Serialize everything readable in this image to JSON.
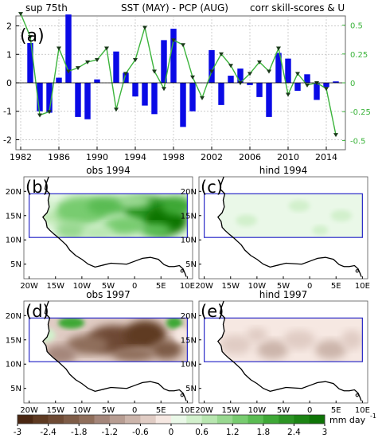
{
  "header": {
    "left": "sup 75th",
    "center": "SST (MAY) - PCP (AUG)",
    "right": "corr skill-scores & U"
  },
  "panel_tags": {
    "a": "(a)",
    "b": "(b)",
    "c": "(c)",
    "d": "(d)",
    "e": "(e)"
  },
  "map_titles": {
    "b": "obs 1994",
    "c": "hind 1994",
    "d": "obs 1997",
    "e": "hind 1997"
  },
  "colors": {
    "bars": "#0a0ae6",
    "line": "#3cb43c",
    "right_axis": "#3cb43c",
    "box": "#2a2ac8",
    "coast": "#000000"
  },
  "chart_data": [
    {
      "type": "bar",
      "title": "",
      "x": [
        1982,
        1983,
        1984,
        1985,
        1986,
        1987,
        1988,
        1989,
        1990,
        1991,
        1992,
        1993,
        1994,
        1995,
        1996,
        1997,
        1998,
        1999,
        2000,
        2001,
        2002,
        2003,
        2004,
        2005,
        2006,
        2007,
        2008,
        2009,
        2010,
        2011,
        2012,
        2013,
        2014,
        2015
      ],
      "series": [
        {
          "axis": "left",
          "values": [
            0,
            1.4,
            -1.0,
            -1.05,
            0.18,
            2.4,
            -1.2,
            -1.28,
            0.12,
            0,
            1.1,
            0.35,
            -0.48,
            -0.8,
            -1.1,
            1.5,
            1.9,
            -1.55,
            -1.0,
            0,
            1.15,
            -0.78,
            0.25,
            0.5,
            -0.08,
            -0.5,
            -1.2,
            1.05,
            0.85,
            -0.28,
            0.3,
            -0.6,
            -0.15,
            0.05
          ]
        },
        {
          "type": "line",
          "axis": "right",
          "values": [
            0.6,
            0.4,
            -0.28,
            -0.25,
            0.3,
            0.1,
            0.13,
            0.18,
            0.2,
            0.3,
            -0.23,
            0.08,
            0.2,
            0.48,
            0.1,
            -0.05,
            0.37,
            0.33,
            0.05,
            -0.13,
            0.1,
            0.25,
            0.15,
            0,
            0.08,
            0.18,
            0.1,
            0.3,
            -0.1,
            0.08,
            -0.02,
            0,
            -0.05,
            -0.45
          ]
        }
      ],
      "xticks": [
        1982,
        1986,
        1990,
        1994,
        1998,
        2002,
        2006,
        2010,
        2014
      ],
      "xlim": [
        1981.5,
        2016
      ],
      "ylim": [
        -2.35,
        2.35
      ],
      "yticks": [
        -2,
        -1,
        0,
        1,
        2
      ],
      "ylim_right": [
        -0.58,
        0.58
      ],
      "yticks_right": [
        -0.5,
        -0.25,
        0,
        0.25,
        0.5
      ],
      "ytick_labels_right": [
        "-0.5",
        "-0.25",
        "0",
        "0.25",
        "0.5"
      ],
      "grid": "dashed"
    },
    {
      "type": "heatmap",
      "xlim": [
        -21,
        11
      ],
      "ylim": [
        2,
        23
      ],
      "xticks": [
        -20,
        -15,
        -10,
        -5,
        0,
        5,
        10
      ],
      "xtick_labels": [
        "20W",
        "15W",
        "10W",
        "5W",
        "0",
        "5E",
        "10E"
      ],
      "yticks": [
        5,
        10,
        15,
        20
      ],
      "ytick_labels": [
        "5N",
        "10N",
        "15N",
        "20N"
      ],
      "box": {
        "lon": [
          -20,
          10
        ],
        "lat": [
          10.5,
          19.5
        ]
      }
    },
    {
      "type": "colorbar",
      "levels": [
        -3,
        -2.7,
        -2.4,
        -2.1,
        -1.8,
        -1.5,
        -1.2,
        -0.9,
        -0.6,
        -0.3,
        0,
        0.3,
        0.6,
        0.9,
        1.2,
        1.5,
        1.8,
        2.1,
        2.4,
        2.7,
        3
      ],
      "tick_values": [
        -3,
        -2.4,
        -1.8,
        -1.2,
        -0.6,
        0,
        0.6,
        1.2,
        1.8,
        2.4,
        3
      ],
      "tick_labels": [
        "-3",
        "-2.4",
        "-1.8",
        "-1.2",
        "-0.6",
        "0",
        "0.6",
        "1.2",
        "1.8",
        "2.4",
        "3"
      ],
      "colors": [
        "#4a2712",
        "#5e3a22",
        "#6e4a34",
        "#7e5c47",
        "#8f6e5b",
        "#a4867a",
        "#b79d92",
        "#ccb5ab",
        "#e0ccc4",
        "#f6e8e2",
        "#eaf8e8",
        "#d2f0cc",
        "#b8e6b0",
        "#98d890",
        "#78cc70",
        "#5abc52",
        "#3ea836",
        "#2c9424",
        "#1c8414",
        "#0e7406"
      ],
      "unit": "mm day",
      "unit_exp": "-1"
    }
  ]
}
